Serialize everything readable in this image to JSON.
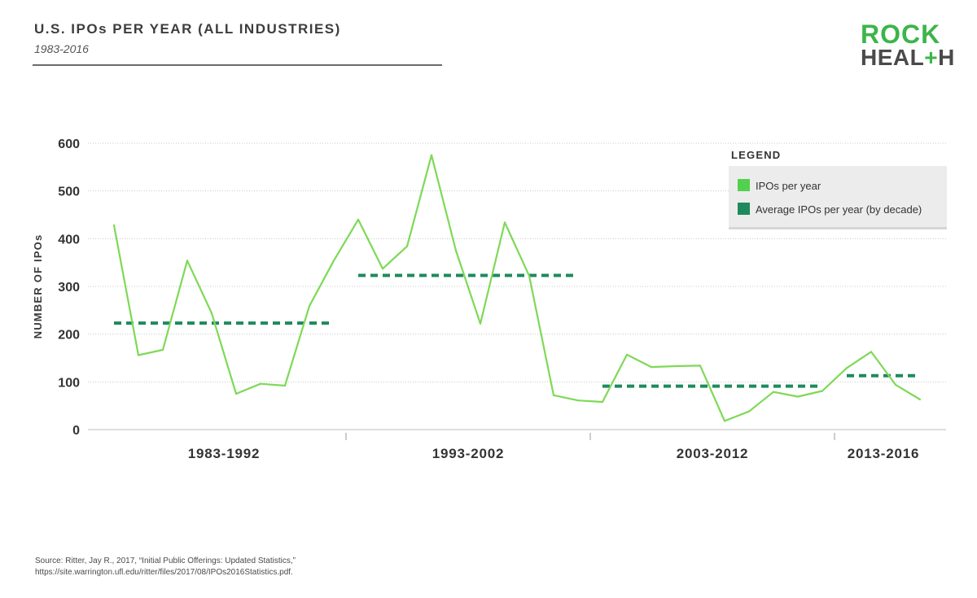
{
  "header": {
    "title": "U.S. IPOs PER YEAR (ALL INDUSTRIES)",
    "subtitle": "1983-2016"
  },
  "logo": {
    "line1": "ROCK",
    "line2a": "HEAL",
    "line2b": "+",
    "line2c": "H"
  },
  "source": {
    "line1": "Source: Ritter, Jay R., 2017, “Initial Public Offerings: Updated Statistics,”",
    "line2": "https://site.warrington.ufl.edu/ritter/files/2017/08/IPOs2016Statistics.pdf."
  },
  "colors": {
    "line": "#7ed957",
    "average": "#1e8a5e",
    "legend_bg": "#ececec"
  },
  "chart_data": {
    "type": "line",
    "title": "U.S. IPOs PER YEAR (ALL INDUSTRIES)",
    "subtitle": "1983-2016",
    "ylabel": "NUMBER OF IPOs",
    "ylim": [
      0,
      600
    ],
    "yticks": [
      0,
      100,
      200,
      300,
      400,
      500,
      600
    ],
    "grid": true,
    "legend_title": "LEGEND",
    "legend_position": "top-right",
    "x": [
      1983,
      1984,
      1985,
      1986,
      1987,
      1988,
      1989,
      1990,
      1991,
      1992,
      1993,
      1994,
      1995,
      1996,
      1997,
      1998,
      1999,
      2000,
      2001,
      2002,
      2003,
      2004,
      2005,
      2006,
      2007,
      2008,
      2009,
      2010,
      2011,
      2012,
      2013,
      2014,
      2015,
      2016
    ],
    "x_groups": [
      {
        "label": "1983-1992",
        "start": 1983,
        "end": 1992
      },
      {
        "label": "1993-2002",
        "start": 1993,
        "end": 2002
      },
      {
        "label": "2003-2012",
        "start": 2003,
        "end": 2012
      },
      {
        "label": "2013-2016",
        "start": 2013,
        "end": 2016
      }
    ],
    "series": [
      {
        "name": "IPOs per year",
        "style": "solid",
        "values": [
          428,
          156,
          167,
          354,
          244,
          75,
          96,
          92,
          259,
          354,
          440,
          337,
          384,
          575,
          375,
          222,
          434,
          322,
          72,
          61,
          58,
          157,
          131,
          133,
          134,
          18,
          38,
          79,
          69,
          81,
          129,
          163,
          94,
          63
        ]
      },
      {
        "name": "Average IPOs per year (by decade)",
        "style": "dashed",
        "segments": [
          {
            "start": 1983,
            "end": 1992,
            "value": 223
          },
          {
            "start": 1993,
            "end": 2002,
            "value": 323
          },
          {
            "start": 2003,
            "end": 2012,
            "value": 91
          },
          {
            "start": 2013,
            "end": 2016,
            "value": 113
          }
        ]
      }
    ]
  }
}
